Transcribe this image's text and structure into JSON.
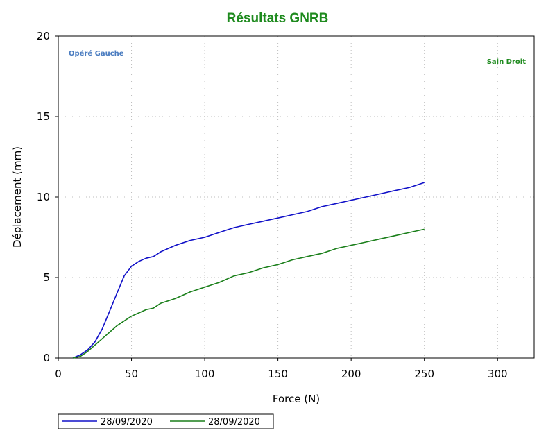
{
  "chart_data": {
    "type": "line",
    "title": "Résultats GNRB",
    "xlabel": "Force (N)",
    "ylabel": "Déplacement (mm)",
    "xlim": [
      0,
      325
    ],
    "ylim": [
      0,
      20
    ],
    "xticks": [
      "0",
      "50",
      "100",
      "150",
      "200",
      "250",
      "300"
    ],
    "yticks": [
      "0",
      "5",
      "10",
      "15",
      "20"
    ],
    "grid": true,
    "legend_position": "bottom",
    "annotations": [
      {
        "text": "Opéré Gauche",
        "color": "#4a7cc0"
      },
      {
        "text": "Sain Droit",
        "color": "#1e8a1e"
      }
    ],
    "series": [
      {
        "name": "28/09/2020",
        "color": "#1010c8",
        "x": [
          10,
          15,
          20,
          25,
          30,
          35,
          40,
          45,
          50,
          55,
          60,
          65,
          70,
          80,
          90,
          100,
          110,
          120,
          130,
          140,
          150,
          160,
          170,
          180,
          190,
          200,
          210,
          220,
          230,
          240,
          250
        ],
        "y": [
          0,
          0.2,
          0.5,
          1.0,
          1.8,
          2.9,
          4.0,
          5.1,
          5.7,
          6.0,
          6.2,
          6.3,
          6.6,
          7.0,
          7.3,
          7.5,
          7.8,
          8.1,
          8.3,
          8.5,
          8.7,
          8.9,
          9.1,
          9.4,
          9.6,
          9.8,
          10.0,
          10.2,
          10.4,
          10.6,
          10.9
        ]
      },
      {
        "name": "28/09/2020",
        "color": "#1a7f1a",
        "x": [
          10,
          15,
          20,
          25,
          30,
          35,
          40,
          45,
          50,
          55,
          60,
          65,
          70,
          80,
          90,
          100,
          110,
          120,
          130,
          140,
          150,
          160,
          170,
          180,
          190,
          200,
          210,
          220,
          230,
          240,
          250
        ],
        "y": [
          0,
          0.1,
          0.4,
          0.8,
          1.2,
          1.6,
          2.0,
          2.3,
          2.6,
          2.8,
          3.0,
          3.1,
          3.4,
          3.7,
          4.1,
          4.4,
          4.7,
          5.1,
          5.3,
          5.6,
          5.8,
          6.1,
          6.3,
          6.5,
          6.8,
          7.0,
          7.2,
          7.4,
          7.6,
          7.8,
          8.0
        ]
      }
    ]
  }
}
